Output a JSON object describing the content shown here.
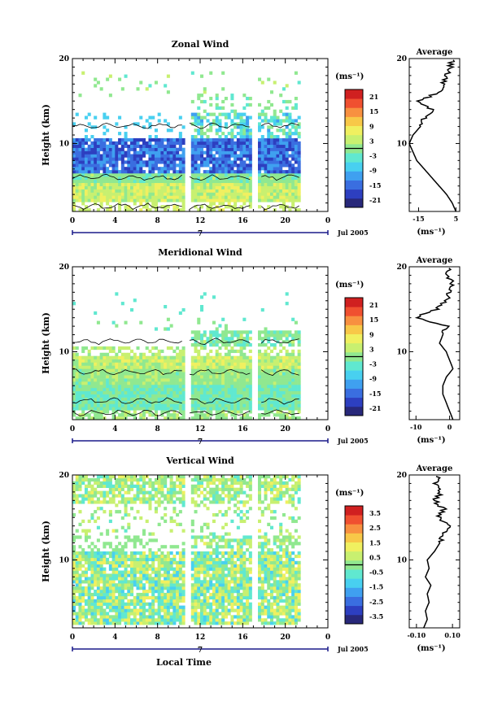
{
  "figure": {
    "xlabel": "Local Time",
    "date_label": "Jul 2005",
    "day_label": "7",
    "ylabel": "Height (km)",
    "unit_label": "(ms⁻¹)",
    "profile_title": "Average",
    "profile_xlabel": "(ms⁻¹)",
    "colors": {
      "scale": [
        "#28287a",
        "#2d3fc0",
        "#3a6ee0",
        "#3fa0f0",
        "#48d0f0",
        "#60e8d0",
        "#90e890",
        "#c8f070",
        "#f0f060",
        "#f8c848",
        "#f89040",
        "#f05030",
        "#d02020"
      ]
    }
  },
  "chart_data": [
    {
      "type": "heatmap",
      "title": "Zonal Wind",
      "xlabel": "Local Time",
      "ylabel": "Height (km)",
      "x_ticks": [
        "0",
        "4",
        "8",
        "12",
        "16",
        "20",
        "0"
      ],
      "xlim": [
        0,
        24
      ],
      "y_ticks": [
        "10",
        "20"
      ],
      "ylim": [
        2,
        20
      ],
      "data_gaps_hours": [
        [
          10.5,
          11.0
        ],
        [
          16.8,
          17.4
        ]
      ],
      "colorbar": {
        "ticks": [
          "21",
          "15",
          "9",
          "3",
          "-3",
          "-9",
          "-15",
          "-21"
        ],
        "range": [
          -24,
          24
        ]
      },
      "profile": {
        "title": "Average",
        "x_ticks": [
          "-15",
          "5"
        ],
        "xlim": [
          -20,
          7
        ],
        "heights": [
          2,
          3,
          4,
          5,
          6,
          7,
          8,
          9,
          10,
          11,
          12,
          13,
          14,
          15,
          16,
          17,
          18,
          19,
          20
        ],
        "values": [
          5,
          3,
          0,
          -4,
          -8,
          -12,
          -16,
          -18,
          -20,
          -18,
          -14,
          -12,
          -8,
          -15,
          -4,
          -2,
          0,
          2,
          3
        ]
      }
    },
    {
      "type": "heatmap",
      "title": "Meridional Wind",
      "xlabel": "Local Time",
      "ylabel": "Height (km)",
      "x_ticks": [
        "0",
        "4",
        "8",
        "12",
        "16",
        "20",
        "0"
      ],
      "xlim": [
        0,
        24
      ],
      "y_ticks": [
        "10",
        "20"
      ],
      "ylim": [
        2,
        20
      ],
      "data_gaps_hours": [
        [
          10.5,
          11.0
        ],
        [
          16.8,
          17.4
        ]
      ],
      "colorbar": {
        "ticks": [
          "21",
          "15",
          "9",
          "3",
          "-3",
          "-9",
          "-15",
          "-21"
        ],
        "range": [
          -24,
          24
        ]
      },
      "profile": {
        "title": "Average",
        "x_ticks": [
          "-10",
          "0"
        ],
        "xlim": [
          -12,
          3
        ],
        "heights": [
          2,
          3,
          4,
          5,
          6,
          7,
          8,
          9,
          10,
          11,
          12,
          13,
          14,
          15,
          16,
          17,
          18,
          19,
          20
        ],
        "values": [
          1,
          0,
          -1,
          -2,
          -2,
          -1,
          1,
          0,
          -1,
          -3,
          -2,
          -1,
          -10,
          -4,
          -1,
          0,
          1,
          -1,
          0
        ]
      }
    },
    {
      "type": "heatmap",
      "title": "Vertical Wind",
      "xlabel": "Local Time",
      "ylabel": "Height (km)",
      "x_ticks": [
        "0",
        "4",
        "8",
        "12",
        "16",
        "20",
        "0"
      ],
      "xlim": [
        0,
        24
      ],
      "y_ticks": [
        "10",
        "20"
      ],
      "ylim": [
        2,
        20
      ],
      "data_gaps_hours": [
        [
          10.5,
          11.0
        ],
        [
          16.8,
          17.4
        ]
      ],
      "colorbar": {
        "ticks": [
          "3.5",
          "2.5",
          "1.5",
          "0.5",
          "-0.5",
          "-1.5",
          "-2.5",
          "-3.5"
        ],
        "range": [
          -4,
          4
        ]
      },
      "profile": {
        "title": "Average",
        "x_ticks": [
          "-0.10",
          "0.10"
        ],
        "xlim": [
          -0.14,
          0.14
        ],
        "heights": [
          2,
          3,
          4,
          5,
          6,
          7,
          8,
          9,
          10,
          11,
          12,
          13,
          14,
          15,
          16,
          17,
          18,
          19,
          20
        ],
        "values": [
          -0.06,
          -0.04,
          -0.05,
          -0.03,
          -0.04,
          -0.02,
          -0.05,
          -0.03,
          -0.04,
          0.0,
          0.03,
          0.05,
          0.08,
          0.02,
          0.05,
          0.0,
          0.04,
          0.0,
          0.02
        ]
      }
    }
  ]
}
